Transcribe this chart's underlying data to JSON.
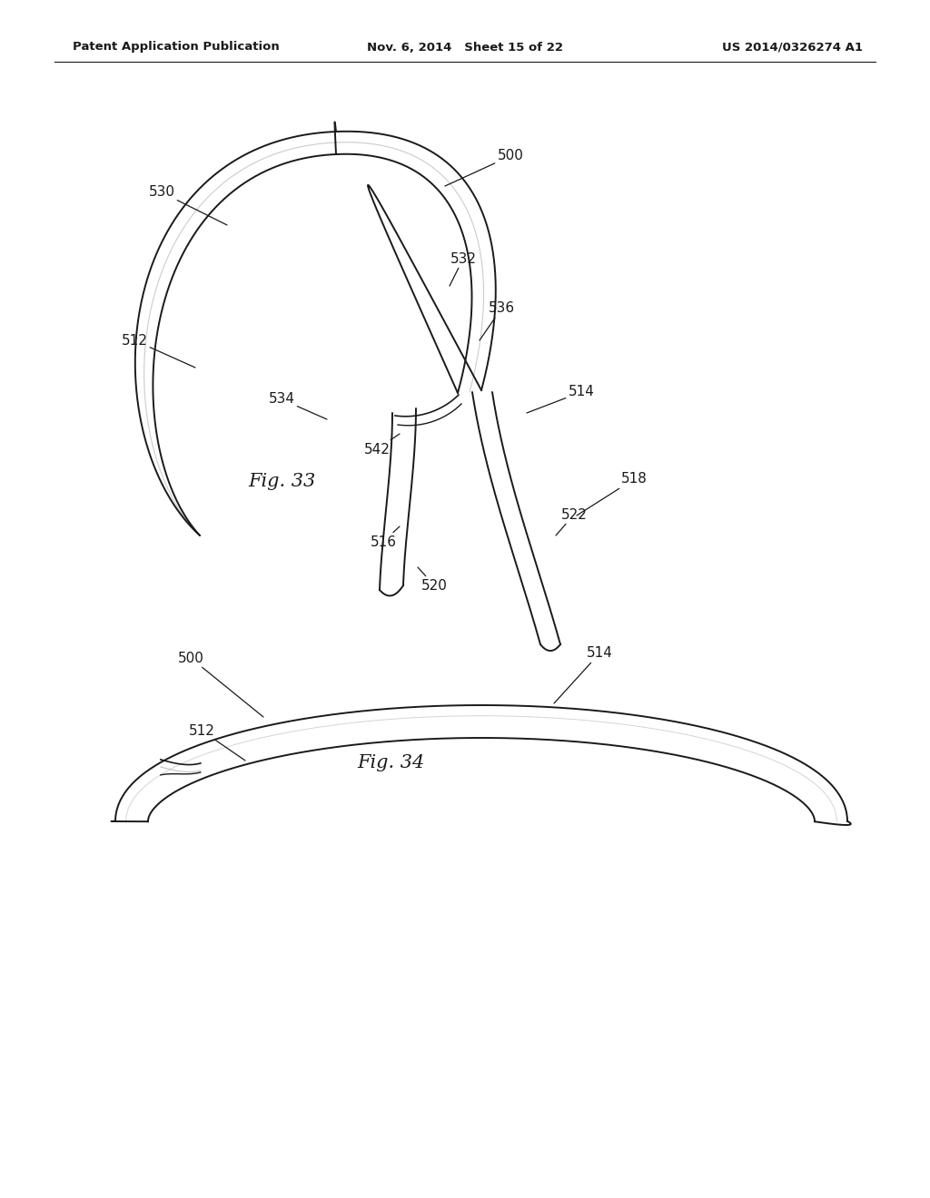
{
  "bg_color": "#ffffff",
  "line_color": "#1a1a1a",
  "gray_color": "#aaaaaa",
  "header": {
    "left": "Patent Application Publication",
    "center": "Nov. 6, 2014   Sheet 15 of 22",
    "right": "US 2014/0326274 A1"
  },
  "fig33_caption": "Fig. 33",
  "fig34_caption": "Fig. 34"
}
